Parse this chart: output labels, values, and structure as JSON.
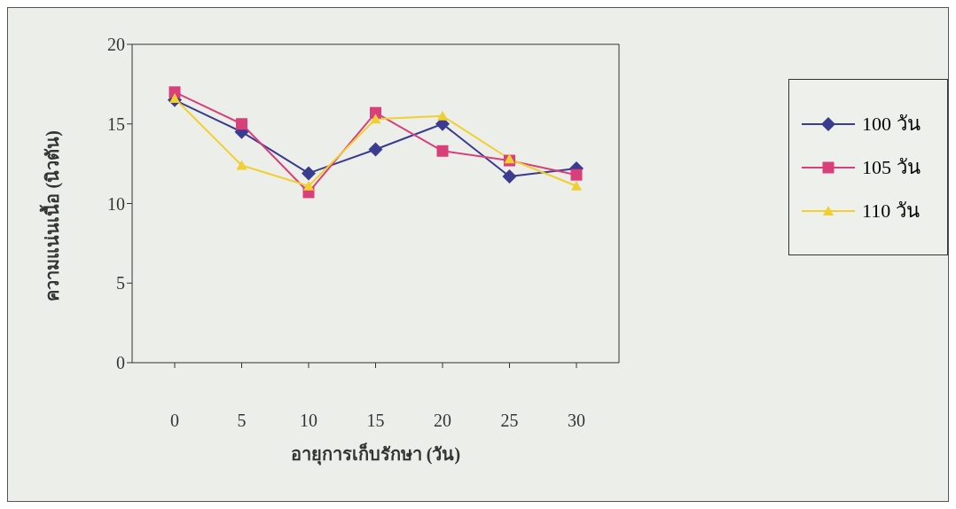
{
  "chart_data": {
    "type": "line",
    "xlabel": "อายุการเก็บรักษา (วัน)",
    "ylabel": "ความแน่นเนื้อ (นิวตัน)",
    "categories": [
      "0",
      "5",
      "10",
      "15",
      "20",
      "25",
      "30"
    ],
    "series": [
      {
        "name": "100 วัน",
        "color": "#3b3b8f",
        "marker": "diamond",
        "values": [
          16.5,
          14.5,
          11.9,
          13.4,
          15.0,
          11.7,
          12.2
        ]
      },
      {
        "name": "105 วัน",
        "color": "#d9407a",
        "marker": "square",
        "values": [
          17.0,
          15.0,
          10.7,
          15.7,
          13.3,
          12.7,
          11.8
        ]
      },
      {
        "name": "110 วัน",
        "color": "#f0d030",
        "marker": "triangle",
        "values": [
          16.6,
          12.4,
          11.1,
          15.3,
          15.5,
          12.8,
          11.1
        ]
      }
    ],
    "ylim": [
      0,
      20
    ],
    "yticks": [
      0,
      5,
      10,
      15,
      20
    ],
    "grid": false,
    "legend": "right",
    "line_style": "solid"
  }
}
